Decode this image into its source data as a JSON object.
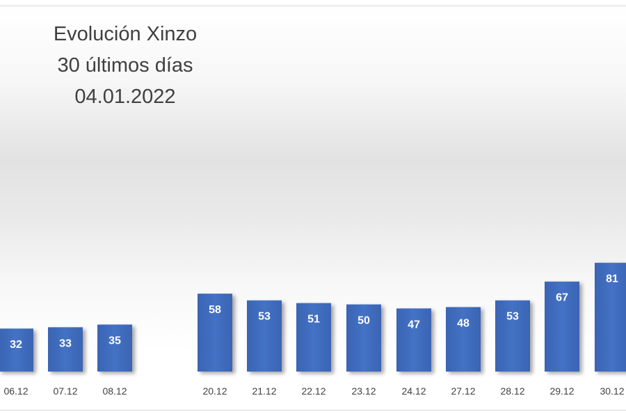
{
  "chart_data": {
    "type": "bar",
    "title_lines": [
      "Evolución Xinzo",
      "30 últimos días",
      "04.01.2022"
    ],
    "categories": [
      "06.12",
      "07.12",
      "08.12",
      "20.12",
      "21.12",
      "22.12",
      "23.12",
      "24.12",
      "27.12",
      "28.12",
      "29.12",
      "30.12"
    ],
    "values": [
      32,
      33,
      35,
      58,
      53,
      51,
      50,
      47,
      48,
      53,
      67,
      81
    ],
    "xlabel": "",
    "ylabel": "",
    "ylim": [
      0,
      100
    ],
    "grid": false,
    "legend": "none",
    "data_labels": true,
    "bar_color": "#4472c4",
    "label_color": "#ffffff"
  }
}
